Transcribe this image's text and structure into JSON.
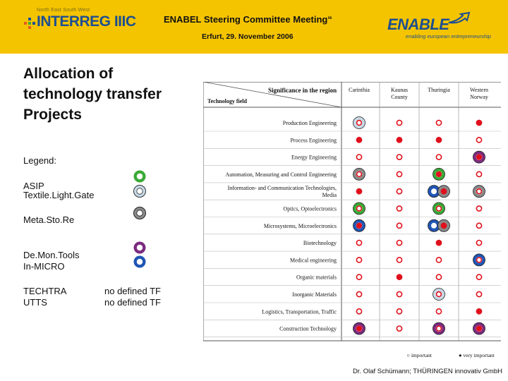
{
  "header": {
    "interreg_region": "North East South West",
    "interreg_logo": "INTERREG IIIC",
    "title": "ENABEL Steering Committee Meeting“",
    "date_line": "Erfurt, 29. November 2006",
    "enable_logo": "ENABLE",
    "enable_tagline": "enabling european entrepreneurship"
  },
  "slide": {
    "title_lines": [
      "Allocation of",
      "technology transfer",
      "Projects"
    ]
  },
  "legend": {
    "heading": "Legend:",
    "asip": "ASIP",
    "textile": "Textile.Light.Gate",
    "metastore": "Meta.Sto.Re",
    "demontools": "De.Mon.Tools",
    "inmicro": "In-MICRO",
    "techtra": "TECHTRA",
    "utts": "UTTS",
    "nodef1": "no defined TF",
    "nodef2": "no defined TF",
    "colors": {
      "asip": "#3aaa35",
      "textile": "#8fb3c9",
      "metastore": "#8a8a8a",
      "demontools": "#7b2a7f",
      "inmicro": "#1f55b5"
    }
  },
  "table": {
    "header_region": "Significance in the region",
    "header_field": "Technology field",
    "regions": [
      {
        "line1": "Carinthia",
        "line2": ""
      },
      {
        "line1": "Kaunas",
        "line2": "County"
      },
      {
        "line1": "Thuringia",
        "line2": ""
      },
      {
        "line1": "Western",
        "line2": "Norway"
      }
    ],
    "rows": [
      {
        "field_line1": "Production Engineering",
        "field_line2": "",
        "cells": [
          [
            "o",
            "textile"
          ],
          [
            "o",
            ""
          ],
          [
            "o",
            ""
          ],
          [
            "v",
            ""
          ]
        ]
      },
      {
        "field_line1": "Process Engineering",
        "field_line2": "",
        "cells": [
          [
            "v",
            ""
          ],
          [
            "v",
            ""
          ],
          [
            "v",
            ""
          ],
          [
            "o",
            ""
          ]
        ]
      },
      {
        "field_line1": "Energy Engineering",
        "field_line2": "",
        "cells": [
          [
            "o",
            ""
          ],
          [
            "o",
            ""
          ],
          [
            "o",
            ""
          ],
          [
            "v",
            "demontools"
          ]
        ]
      },
      {
        "field_line1": "Automation, Measuring and Control Engineering",
        "field_line2": "",
        "cells": [
          [
            "o",
            "metastore"
          ],
          [
            "o",
            ""
          ],
          [
            "v",
            "asip"
          ],
          [
            "o",
            ""
          ]
        ]
      },
      {
        "field_line1": "Information- and Communication Technologies,",
        "field_line2": "Media",
        "cells": [
          [
            "v",
            ""
          ],
          [
            "o",
            ""
          ],
          [
            "v",
            "inmicro,metastore"
          ],
          [
            "o",
            "metastore"
          ]
        ]
      },
      {
        "field_line1": "Optics, Optoelectronics",
        "field_line2": "",
        "cells": [
          [
            "o",
            "asip"
          ],
          [
            "o",
            ""
          ],
          [
            "o",
            "asip"
          ],
          [
            "o",
            ""
          ]
        ]
      },
      {
        "field_line1": "Microsystems, Microelectronics",
        "field_line2": "",
        "cells": [
          [
            "v",
            "inmicro"
          ],
          [
            "o",
            ""
          ],
          [
            "v",
            "inmicro,metastore"
          ],
          [
            "o",
            ""
          ]
        ]
      },
      {
        "field_line1": "Biotechnology",
        "field_line2": "",
        "cells": [
          [
            "o",
            ""
          ],
          [
            "o",
            ""
          ],
          [
            "v",
            ""
          ],
          [
            "o",
            ""
          ]
        ]
      },
      {
        "field_line1": "Medical engineering",
        "field_line2": "",
        "cells": [
          [
            "o",
            ""
          ],
          [
            "o",
            ""
          ],
          [
            "o",
            ""
          ],
          [
            "o",
            "inmicro"
          ]
        ]
      },
      {
        "field_line1": "Organic materials",
        "field_line2": "",
        "cells": [
          [
            "o",
            ""
          ],
          [
            "v",
            ""
          ],
          [
            "o",
            ""
          ],
          [
            "o",
            ""
          ]
        ]
      },
      {
        "field_line1": "Inorganic Materials",
        "field_line2": "",
        "cells": [
          [
            "o",
            ""
          ],
          [
            "o",
            ""
          ],
          [
            "o",
            "textile"
          ],
          [
            "o",
            ""
          ]
        ]
      },
      {
        "field_line1": "Logistics, Transportation, Traffic",
        "field_line2": "",
        "cells": [
          [
            "o",
            ""
          ],
          [
            "o",
            ""
          ],
          [
            "o",
            ""
          ],
          [
            "v",
            ""
          ]
        ]
      },
      {
        "field_line1": "Construction Technology",
        "field_line2": "",
        "cells": [
          [
            "v",
            "demontools"
          ],
          [
            "o",
            ""
          ],
          [
            "o",
            "demontools"
          ],
          [
            "v",
            "demontools"
          ]
        ]
      }
    ],
    "key_important": "○ important",
    "key_very_important": "● very important",
    "dot_color": "#e0101c"
  },
  "footer": {
    "credit": "Dr. Olaf Schümann; THÜRINGEN innovativ GmbH"
  }
}
